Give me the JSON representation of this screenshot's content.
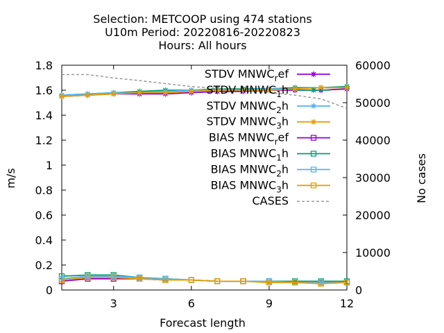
{
  "chart_data": {
    "type": "line",
    "title_lines": [
      "Selection: METCOOP using   474 stations",
      "U10m   Period: 20220816-20220823",
      "Hours:  All hours"
    ],
    "xlabel": "Forecast length",
    "ylabel": "m/s",
    "y2label": "No cases",
    "xlim": [
      1,
      12
    ],
    "ylim": [
      0,
      1.8
    ],
    "y2lim": [
      0,
      60000
    ],
    "xticks": [
      3,
      6,
      9,
      12
    ],
    "yticks": [
      0,
      0.2,
      0.4,
      0.6,
      0.8,
      1,
      1.2,
      1.4,
      1.6,
      1.8
    ],
    "y2ticks": [
      0,
      10000,
      20000,
      30000,
      40000,
      50000,
      60000
    ],
    "legend_position": "top-right",
    "x": [
      1,
      2,
      3,
      4,
      5,
      6,
      7,
      8,
      9,
      10,
      11,
      12
    ],
    "series": [
      {
        "name": "STDV MNWC_ref",
        "legend": {
          "pre": "STDV MNWC",
          "sub": "r",
          "post": "ef"
        },
        "color": "#9400d3",
        "marker": "star",
        "dash": "",
        "axis": "y1",
        "values": [
          1.55,
          1.56,
          1.57,
          1.57,
          1.57,
          1.58,
          1.59,
          1.59,
          1.6,
          1.6,
          1.6,
          1.61
        ]
      },
      {
        "name": "STDV MNWC_1h",
        "legend": {
          "pre": "STDV MNWC",
          "sub": "1",
          "post": "h"
        },
        "color": "#009e73",
        "marker": "star",
        "dash": "",
        "axis": "y1",
        "values": [
          1.56,
          1.57,
          1.58,
          1.59,
          1.6,
          1.6,
          1.61,
          1.61,
          1.61,
          1.62,
          1.62,
          1.63
        ]
      },
      {
        "name": "STDV MNWC_2h",
        "legend": {
          "pre": "STDV MNWC",
          "sub": "2",
          "post": "h"
        },
        "color": "#56b4e9",
        "marker": "star",
        "dash": "",
        "axis": "y1",
        "values": [
          1.56,
          1.57,
          1.58,
          1.58,
          1.59,
          1.6,
          1.6,
          1.6,
          1.61,
          1.61,
          1.62,
          1.62
        ]
      },
      {
        "name": "STDV MNWC_3h",
        "legend": {
          "pre": "STDV MNWC",
          "sub": "3",
          "post": "h"
        },
        "color": "#e69f00",
        "marker": "star",
        "dash": "",
        "axis": "y1",
        "values": [
          1.55,
          1.56,
          1.57,
          1.58,
          1.58,
          1.59,
          1.6,
          1.6,
          1.6,
          1.61,
          1.62,
          1.62
        ]
      },
      {
        "name": "BIAS MNWC_ref",
        "legend": {
          "pre": "BIAS MNWC",
          "sub": "r",
          "post": "ef"
        },
        "color": "#9400d3",
        "marker": "square",
        "dash": "",
        "axis": "y1",
        "values": [
          0.07,
          0.09,
          0.09,
          0.09,
          0.08,
          0.08,
          0.07,
          0.07,
          0.07,
          0.06,
          0.06,
          0.06
        ]
      },
      {
        "name": "BIAS MNWC_1h",
        "legend": {
          "pre": "BIAS MNWC",
          "sub": "1",
          "post": "h"
        },
        "color": "#009e73",
        "marker": "square",
        "dash": "",
        "axis": "y1",
        "values": [
          0.11,
          0.12,
          0.12,
          0.1,
          0.09,
          0.08,
          0.07,
          0.07,
          0.07,
          0.07,
          0.07,
          0.07
        ]
      },
      {
        "name": "BIAS MNWC_2h",
        "legend": {
          "pre": "BIAS MNWC",
          "sub": "2",
          "post": "h"
        },
        "color": "#56b4e9",
        "marker": "square",
        "dash": "",
        "axis": "y1",
        "values": [
          0.09,
          0.11,
          0.11,
          0.1,
          0.09,
          0.08,
          0.07,
          0.07,
          0.07,
          0.06,
          0.06,
          0.06
        ]
      },
      {
        "name": "BIAS MNWC_3h",
        "legend": {
          "pre": "BIAS MNWC",
          "sub": "3",
          "post": "h"
        },
        "color": "#e69f00",
        "marker": "square",
        "dash": "",
        "axis": "y1",
        "values": [
          0.08,
          0.1,
          0.1,
          0.09,
          0.08,
          0.08,
          0.07,
          0.07,
          0.06,
          0.06,
          0.05,
          0.06
        ]
      },
      {
        "name": "CASES",
        "legend": {
          "pre": "CASES",
          "sub": "",
          "post": ""
        },
        "color": "#999999",
        "marker": "none",
        "dash": "4,3",
        "axis": "y2",
        "values": [
          57500,
          57500,
          56600,
          55900,
          55100,
          54300,
          53800,
          53300,
          52700,
          52000,
          51000,
          48500
        ]
      }
    ]
  }
}
